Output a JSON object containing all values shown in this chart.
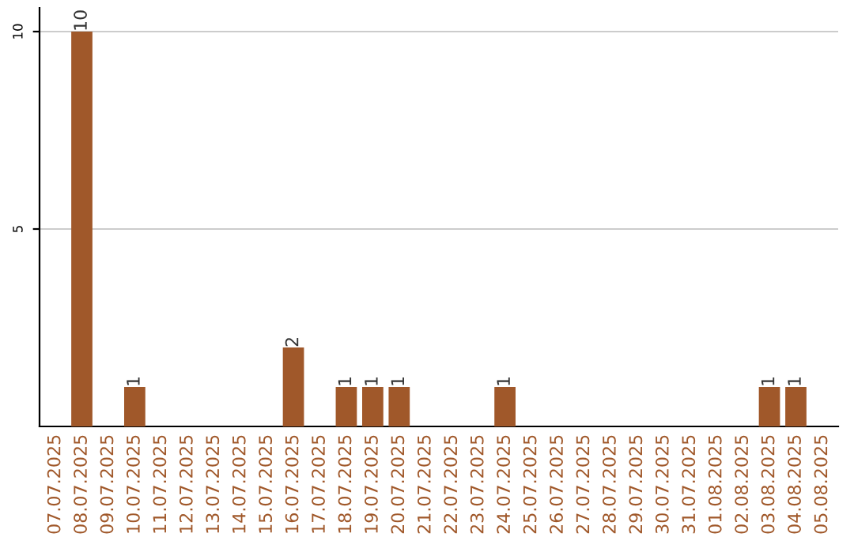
{
  "chart_data": {
    "type": "bar",
    "categories": [
      "07.07.2025",
      "08.07.2025",
      "09.07.2025",
      "10.07.2025",
      "11.07.2025",
      "12.07.2025",
      "13.07.2025",
      "14.07.2025",
      "15.07.2025",
      "16.07.2025",
      "17.07.2025",
      "18.07.2025",
      "19.07.2025",
      "20.07.2025",
      "21.07.2025",
      "22.07.2025",
      "23.07.2025",
      "24.07.2025",
      "25.07.2025",
      "26.07.2025",
      "27.07.2025",
      "28.07.2025",
      "29.07.2025",
      "30.07.2025",
      "31.07.2025",
      "01.08.2025",
      "02.08.2025",
      "03.08.2025",
      "04.08.2025",
      "05.08.2025"
    ],
    "values": [
      0,
      10,
      0,
      1,
      0,
      0,
      0,
      0,
      0,
      2,
      0,
      1,
      1,
      1,
      0,
      0,
      0,
      1,
      0,
      0,
      0,
      0,
      0,
      0,
      0,
      0,
      0,
      1,
      1,
      0
    ],
    "value_labels": [
      null,
      "10",
      null,
      "1",
      null,
      null,
      null,
      null,
      null,
      "2",
      null,
      "1",
      "1",
      "1",
      null,
      null,
      null,
      "1",
      null,
      null,
      null,
      null,
      null,
      null,
      null,
      null,
      null,
      "1",
      "1",
      null
    ],
    "color": "#a0582a",
    "ylim": [
      0,
      10.6
    ],
    "yticks": [
      5,
      10
    ],
    "grid": "y"
  }
}
